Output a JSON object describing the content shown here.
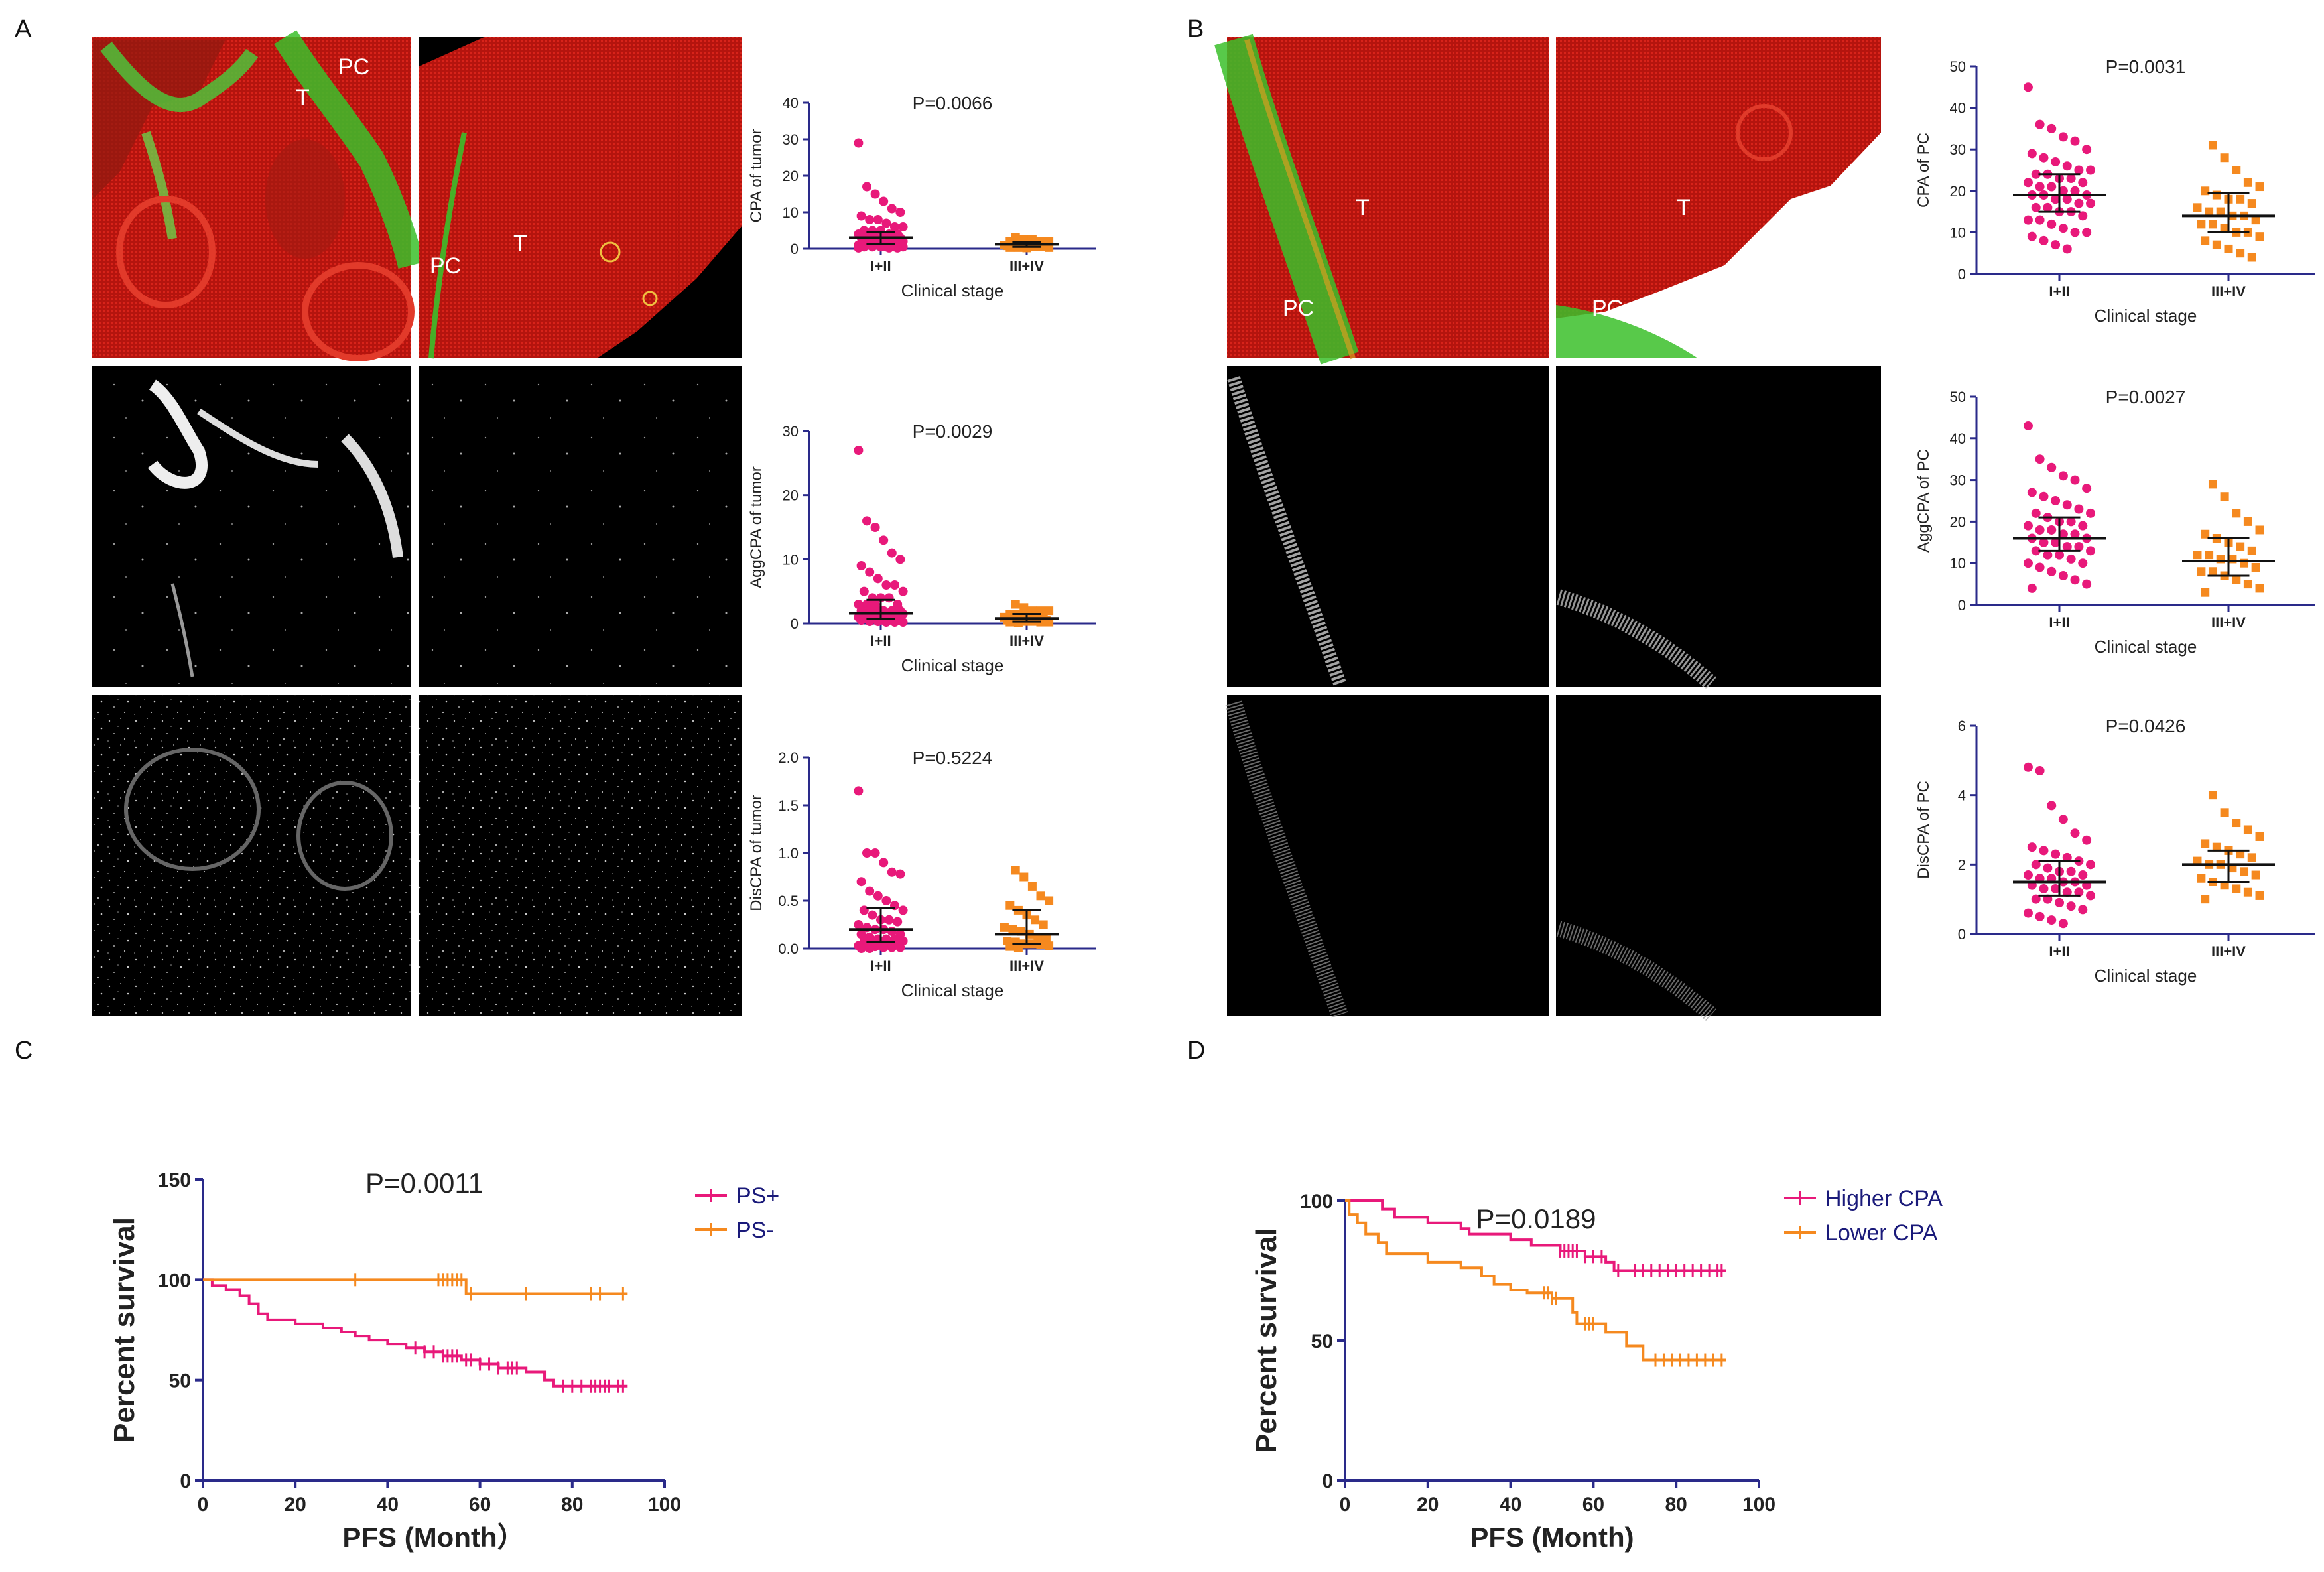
{
  "panels": {
    "a": "A",
    "b": "B",
    "c": "C",
    "d": "D"
  },
  "image_labels": {
    "a_img1_pc": "PC",
    "a_img1_t": "T",
    "a_img2_pc": "PC",
    "a_img2_t": "T",
    "b_img1_t": "T",
    "b_img1_pc": "PC",
    "b_img2_t": "T",
    "b_img2_pc": "PC"
  },
  "colors": {
    "group1": "#e8197a",
    "group2": "#f5891f",
    "axis": "#2a2a8a",
    "tissue_red": "#c41a12",
    "collagen_green": "#3bbf2a"
  },
  "chart_data": [
    {
      "id": "a1",
      "type": "scatter",
      "title": "P=0.0066",
      "ylabel": "CPA of tumor",
      "xlabel": "Clinical stage",
      "categories": [
        "I+II",
        "III+IV"
      ],
      "ylim": [
        0,
        40
      ],
      "yticks": [
        0,
        10,
        20,
        30,
        40
      ],
      "ytick_labels": [
        "0",
        "10",
        "20",
        "30",
        "40"
      ],
      "series": [
        {
          "name": "I+II",
          "values": [
            29,
            17,
            15,
            13,
            11,
            10,
            9,
            8,
            8,
            7,
            6,
            6,
            5,
            5,
            5,
            4,
            4,
            4,
            4,
            3,
            3,
            3,
            3,
            3,
            3,
            2,
            2,
            2,
            2,
            2,
            2,
            2,
            2,
            1,
            1,
            1,
            1,
            1,
            1,
            1,
            1,
            1,
            1,
            0.5,
            0.5,
            0.5,
            0.5,
            0.5,
            0.5,
            0.2,
            0.2,
            0.2
          ],
          "median": 3.0,
          "q1": 1.2,
          "q3": 4.5
        },
        {
          "name": "III+IV",
          "values": [
            3,
            2.5,
            2.5,
            2,
            2,
            2,
            2,
            1.5,
            1.5,
            1.5,
            1,
            1,
            1,
            1,
            1,
            1,
            0.8,
            0.8,
            0.5,
            0.5,
            0.5,
            0.3,
            0.3,
            0.3,
            0.2
          ],
          "median": 1.2,
          "q1": 0.5,
          "q3": 1.8
        }
      ]
    },
    {
      "id": "a2",
      "type": "scatter",
      "title": "P=0.0029",
      "ylabel": "AggCPA of tumor",
      "xlabel": "Clinical stage",
      "categories": [
        "I+II",
        "III+IV"
      ],
      "ylim": [
        0,
        30
      ],
      "yticks": [
        0,
        10,
        20,
        30
      ],
      "ytick_labels": [
        "0",
        "10",
        "20",
        "30"
      ],
      "series": [
        {
          "name": "I+II",
          "values": [
            27,
            16,
            15,
            13,
            11,
            10,
            9,
            8,
            7,
            6,
            6,
            5,
            5,
            4,
            4,
            4,
            3,
            3,
            3,
            3,
            2,
            2,
            2,
            2,
            2,
            2,
            1.5,
            1.5,
            1.5,
            1,
            1,
            1,
            1,
            1,
            1,
            0.8,
            0.8,
            0.5,
            0.5,
            0.5,
            0.5,
            0.3,
            0.3,
            0.2,
            0.2,
            0.2
          ],
          "median": 1.6,
          "q1": 0.7,
          "q3": 3.7
        },
        {
          "name": "III+IV",
          "values": [
            3,
            2.5,
            2,
            2,
            2,
            1.5,
            1.5,
            1.5,
            1.2,
            1,
            1,
            1,
            1,
            0.8,
            0.8,
            0.5,
            0.5,
            0.5,
            0.3,
            0.3,
            0.2,
            0.2,
            0.2,
            0.1
          ],
          "median": 0.8,
          "q1": 0.3,
          "q3": 1.5
        }
      ]
    },
    {
      "id": "a3",
      "type": "scatter",
      "title": "P=0.5224",
      "ylabel": "DisCPA of tumor",
      "xlabel": "Clinical stage",
      "categories": [
        "I+II",
        "III+IV"
      ],
      "ylim": [
        0,
        2.0
      ],
      "yticks": [
        0,
        0.5,
        1.0,
        1.5,
        2.0
      ],
      "ytick_labels": [
        "0.0",
        "0.5",
        "1.0",
        "1.5",
        "2.0"
      ],
      "series": [
        {
          "name": "I+II",
          "values": [
            1.65,
            1.0,
            1.0,
            0.9,
            0.8,
            0.78,
            0.7,
            0.6,
            0.55,
            0.5,
            0.45,
            0.4,
            0.4,
            0.35,
            0.3,
            0.3,
            0.28,
            0.25,
            0.22,
            0.2,
            0.2,
            0.18,
            0.15,
            0.15,
            0.12,
            0.1,
            0.1,
            0.1,
            0.08,
            0.07,
            0.06,
            0.05,
            0.05,
            0.04,
            0.03,
            0.02,
            0.02,
            0.01,
            0.01,
            0.01,
            0.0,
            0.0
          ],
          "median": 0.2,
          "q1": 0.07,
          "q3": 0.42
        },
        {
          "name": "III+IV",
          "values": [
            0.82,
            0.75,
            0.65,
            0.55,
            0.5,
            0.45,
            0.4,
            0.35,
            0.3,
            0.25,
            0.22,
            0.2,
            0.18,
            0.15,
            0.12,
            0.1,
            0.08,
            0.07,
            0.05,
            0.05,
            0.04,
            0.03,
            0.02,
            0.01
          ],
          "median": 0.15,
          "q1": 0.05,
          "q3": 0.4
        }
      ]
    },
    {
      "id": "b1",
      "type": "scatter",
      "title": "P=0.0031",
      "ylabel": "CPA of PC",
      "xlabel": "Clinical stage",
      "categories": [
        "I+II",
        "III+IV"
      ],
      "ylim": [
        0,
        50
      ],
      "yticks": [
        0,
        10,
        20,
        30,
        40,
        50
      ],
      "ytick_labels": [
        "0",
        "10",
        "20",
        "30",
        "40",
        "50"
      ],
      "series": [
        {
          "name": "I+II",
          "values": [
            45,
            36,
            35,
            33,
            32,
            30,
            29,
            28,
            27,
            26,
            25,
            25,
            24,
            24,
            23,
            23,
            22,
            22,
            21,
            21,
            20,
            20,
            19,
            19,
            19,
            18,
            18,
            17,
            17,
            16,
            16,
            15,
            15,
            14,
            13,
            13,
            12,
            11,
            10,
            10,
            9,
            8,
            7,
            6
          ],
          "median": 19,
          "q1": 15,
          "q3": 24
        },
        {
          "name": "III+IV",
          "values": [
            31,
            28,
            25,
            22,
            21,
            20,
            19,
            18,
            18,
            17,
            16,
            15,
            15,
            14,
            14,
            13,
            12,
            12,
            11,
            10,
            10,
            9,
            8,
            7,
            6,
            5,
            4
          ],
          "median": 14,
          "q1": 10,
          "q3": 19.5
        }
      ]
    },
    {
      "id": "b2",
      "type": "scatter",
      "title": "P=0.0027",
      "ylabel": "AggCPA of PC",
      "xlabel": "Clinical stage",
      "categories": [
        "I+II",
        "III+IV"
      ],
      "ylim": [
        0,
        50
      ],
      "yticks": [
        0,
        10,
        20,
        30,
        40,
        50
      ],
      "ytick_labels": [
        "0",
        "10",
        "20",
        "30",
        "40",
        "50"
      ],
      "series": [
        {
          "name": "I+II",
          "values": [
            43,
            35,
            33,
            31,
            30,
            28,
            27,
            26,
            25,
            24,
            23,
            22,
            22,
            21,
            20,
            20,
            19,
            19,
            18,
            18,
            17,
            17,
            16,
            16,
            15,
            15,
            14,
            14,
            13,
            13,
            12,
            12,
            11,
            10,
            10,
            9,
            8,
            7,
            6,
            5,
            4
          ],
          "median": 16,
          "q1": 13,
          "q3": 21
        },
        {
          "name": "III+IV",
          "values": [
            29,
            26,
            22,
            20,
            18,
            17,
            16,
            15,
            14,
            13,
            12,
            12,
            11,
            11,
            10,
            9,
            8,
            8,
            7,
            6,
            5,
            4,
            3
          ],
          "median": 10.5,
          "q1": 7,
          "q3": 16
        }
      ]
    },
    {
      "id": "b3",
      "type": "scatter",
      "title": "P=0.0426",
      "ylabel": "DisCPA of PC",
      "xlabel": "Clinical stage",
      "categories": [
        "I+II",
        "III+IV"
      ],
      "ylim": [
        0,
        6
      ],
      "yticks": [
        0,
        2,
        4,
        6
      ],
      "ytick_labels": [
        "0",
        "2",
        "4",
        "6"
      ],
      "series": [
        {
          "name": "I+II",
          "values": [
            4.8,
            4.7,
            3.7,
            3.3,
            2.9,
            2.7,
            2.5,
            2.4,
            2.3,
            2.2,
            2.1,
            2.0,
            2.0,
            1.9,
            1.8,
            1.8,
            1.7,
            1.7,
            1.6,
            1.6,
            1.5,
            1.5,
            1.4,
            1.4,
            1.3,
            1.3,
            1.2,
            1.2,
            1.1,
            1.0,
            1.0,
            0.9,
            0.8,
            0.7,
            0.6,
            0.5,
            0.4,
            0.3
          ],
          "median": 1.5,
          "q1": 1.1,
          "q3": 2.1
        },
        {
          "name": "III+IV",
          "values": [
            4.0,
            3.5,
            3.2,
            3.0,
            2.8,
            2.6,
            2.5,
            2.4,
            2.3,
            2.2,
            2.1,
            2.0,
            2.0,
            1.9,
            1.8,
            1.7,
            1.6,
            1.5,
            1.4,
            1.3,
            1.2,
            1.1,
            1.0
          ],
          "median": 2.0,
          "q1": 1.5,
          "q3": 2.4
        }
      ]
    },
    {
      "id": "c",
      "type": "line",
      "subtype": "kaplan-meier",
      "title": "P=0.0011",
      "ylabel": "Percent survival",
      "xlabel": "PFS (Month）",
      "xlim": [
        0,
        100
      ],
      "ylim": [
        0,
        150
      ],
      "xticks": [
        0,
        20,
        40,
        60,
        80,
        100
      ],
      "yticks": [
        0,
        50,
        100,
        150
      ],
      "series": [
        {
          "name": "PS+",
          "steps": [
            [
              0,
              100
            ],
            [
              2,
              97
            ],
            [
              5,
              95
            ],
            [
              8,
              92
            ],
            [
              10,
              88
            ],
            [
              12,
              83
            ],
            [
              14,
              80
            ],
            [
              20,
              78
            ],
            [
              26,
              76
            ],
            [
              30,
              74
            ],
            [
              33,
              72
            ],
            [
              36,
              70
            ],
            [
              40,
              68
            ],
            [
              44,
              66
            ],
            [
              48,
              64
            ],
            [
              52,
              62
            ],
            [
              56,
              60
            ],
            [
              60,
              58
            ],
            [
              64,
              56
            ],
            [
              70,
              54
            ],
            [
              74,
              50
            ],
            [
              76,
              47
            ],
            [
              92,
              47
            ]
          ],
          "censored": [
            46,
            48,
            50,
            52,
            53,
            54,
            55,
            57,
            58,
            60,
            62,
            64,
            66,
            67,
            68,
            78,
            80,
            82,
            84,
            85,
            86,
            87,
            88,
            90,
            91
          ]
        },
        {
          "name": "PS-",
          "steps": [
            [
              0,
              100
            ],
            [
              57,
              100
            ],
            [
              57,
              93
            ],
            [
              92,
              93
            ]
          ],
          "censored": [
            33,
            51,
            52,
            53,
            54,
            55,
            56,
            58,
            70,
            84,
            86,
            91
          ]
        }
      ]
    },
    {
      "id": "d",
      "type": "line",
      "subtype": "kaplan-meier",
      "title": "P=0.0189",
      "ylabel": "Percent survival",
      "xlabel": "PFS (Month)",
      "xlim": [
        0,
        100
      ],
      "ylim": [
        0,
        100
      ],
      "xticks": [
        0,
        20,
        40,
        60,
        80,
        100
      ],
      "yticks": [
        0,
        50,
        100
      ],
      "series": [
        {
          "name": "Higher CPA",
          "steps": [
            [
              0,
              100
            ],
            [
              9,
              100
            ],
            [
              9,
              97
            ],
            [
              12,
              94
            ],
            [
              20,
              92
            ],
            [
              28,
              90
            ],
            [
              30,
              88
            ],
            [
              40,
              86
            ],
            [
              45,
              84
            ],
            [
              52,
              82
            ],
            [
              58,
              80
            ],
            [
              63,
              78
            ],
            [
              65,
              75
            ],
            [
              92,
              75
            ]
          ],
          "censored": [
            52,
            53,
            54,
            55,
            56,
            58,
            60,
            62,
            66,
            70,
            72,
            74,
            76,
            78,
            80,
            82,
            84,
            86,
            88,
            90,
            91
          ]
        },
        {
          "name": "Lower CPA",
          "steps": [
            [
              0,
              100
            ],
            [
              1,
              95
            ],
            [
              3,
              92
            ],
            [
              5,
              88
            ],
            [
              8,
              85
            ],
            [
              10,
              81
            ],
            [
              20,
              78
            ],
            [
              28,
              76
            ],
            [
              33,
              73
            ],
            [
              36,
              70
            ],
            [
              40,
              68
            ],
            [
              44,
              67
            ],
            [
              50,
              65
            ],
            [
              55,
              60
            ],
            [
              56,
              56
            ],
            [
              63,
              53
            ],
            [
              68,
              48
            ],
            [
              72,
              43
            ],
            [
              92,
              43
            ]
          ],
          "censored": [
            48,
            49,
            50,
            51,
            58,
            59,
            60,
            75,
            77,
            79,
            81,
            83,
            85,
            87,
            89,
            91
          ]
        }
      ]
    }
  ]
}
